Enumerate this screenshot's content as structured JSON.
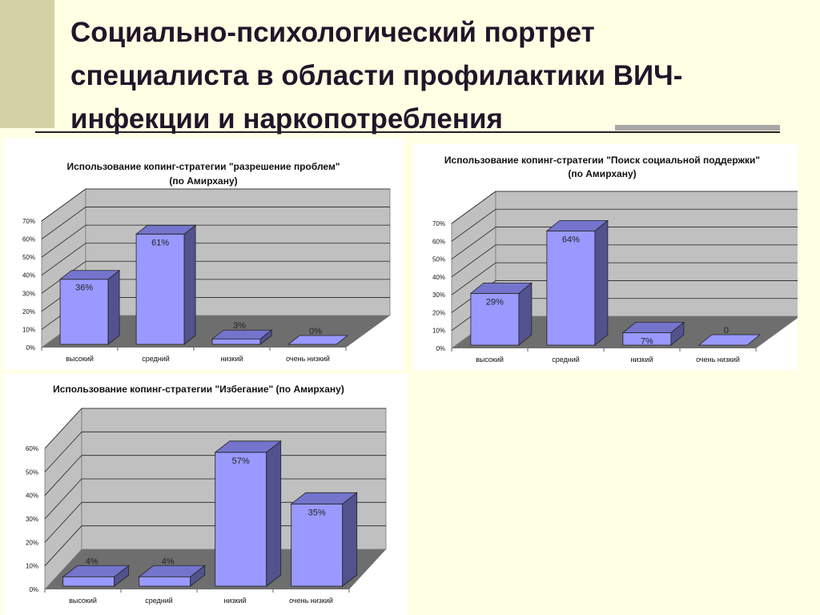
{
  "slide": {
    "title_line1": "Социально-психологический портрет",
    "title_line2": "специалиста в области профилактики ВИЧ-",
    "title_line3": "инфекции и наркопотребления"
  },
  "colors": {
    "background": "#FFFFE3",
    "accent_strip": "#D2D2A4",
    "bar_front": "#9999FF",
    "bar_side": "#52528E",
    "bar_top": "#7474CC",
    "plot_back": "#C0C0C0",
    "plot_floor": "#6E6E6E"
  },
  "chart_data": [
    {
      "type": "bar",
      "title_lines": [
        "Использование копинг-стратегии \"разрешение проблем\"",
        "(по Амирхану)"
      ],
      "categories": [
        "высокий",
        "средний",
        "низкий",
        "очень низкий"
      ],
      "values": [
        36,
        61,
        3,
        0
      ],
      "data_labels": [
        "36%",
        "61%",
        "3%",
        "0%"
      ],
      "yticks": [
        "0%",
        "10%",
        "20%",
        "30%",
        "40%",
        "50%",
        "60%",
        "70%"
      ],
      "ylim": [
        0,
        70
      ],
      "grid": true
    },
    {
      "type": "bar",
      "title_lines": [
        "Использование копинг-стратегии \"Поиск социальной поддержки\"",
        "(по Амирхану)"
      ],
      "categories": [
        "высокий",
        "средний",
        "низкий",
        "очень низкий"
      ],
      "values": [
        29,
        64,
        7,
        0
      ],
      "data_labels": [
        "29%",
        "64%",
        "7%",
        "0"
      ],
      "yticks": [
        "0%",
        "10%",
        "20%",
        "30%",
        "40%",
        "50%",
        "60%",
        "70%"
      ],
      "ylim": [
        0,
        70
      ],
      "grid": true
    },
    {
      "type": "bar",
      "title_lines": [
        "Использование копинг-стратегии \"Избегание\" (по Амирхану)"
      ],
      "categories": [
        "высокий",
        "средний",
        "низкий",
        "очень низкий"
      ],
      "values": [
        4,
        4,
        57,
        35
      ],
      "data_labels": [
        "4%",
        "4%",
        "57%",
        "35%"
      ],
      "yticks": [
        "0%",
        "10%",
        "20%",
        "30%",
        "40%",
        "50%",
        "60%"
      ],
      "ylim": [
        0,
        60
      ],
      "grid": true
    }
  ]
}
